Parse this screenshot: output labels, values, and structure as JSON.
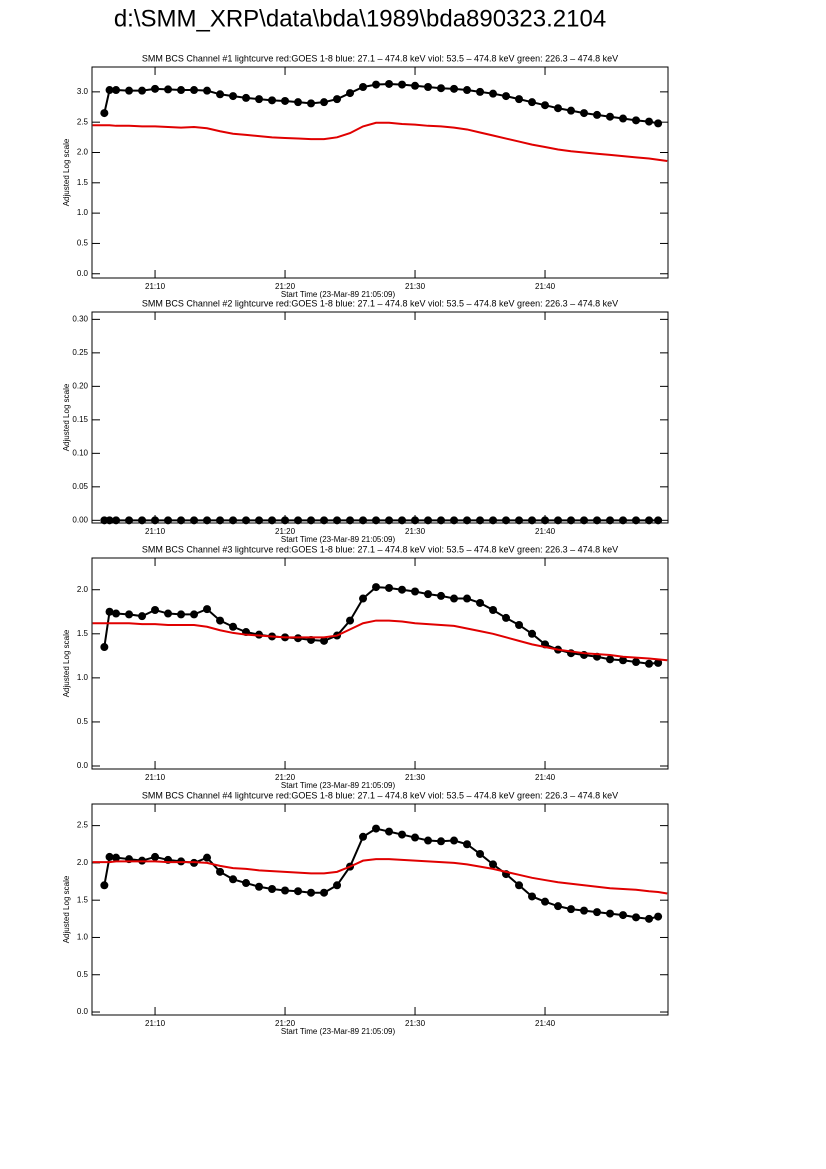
{
  "title": "d:\\SMM_XRP\\data\\bda\\1989\\bda890323.2104",
  "chart_data": [
    {
      "type": "line",
      "title": "SMM BCS Channel #1 lightcurve  red:GOES 1-8  blue: 27.1 – 474.8 keV  viol: 53.5 – 474.8 keV  green: 226.3 – 474.8 keV",
      "xlabel": "Start Time (23-Mar-89 21:05:09)",
      "ylabel": "Adjusted Log scale",
      "x": [
        5.2,
        6.1,
        6.5,
        7,
        8,
        9,
        10,
        11,
        12,
        13,
        14,
        15,
        16,
        17,
        18,
        19,
        20,
        21,
        22,
        23,
        24,
        25,
        26,
        27,
        28,
        29,
        30,
        31,
        32,
        33,
        34,
        35,
        36,
        37,
        38,
        39,
        40,
        41,
        42,
        43,
        44,
        45,
        46,
        47,
        48,
        48.7,
        49.4
      ],
      "series": [
        {
          "color": "#000000",
          "marker": "circle",
          "values": [
            null,
            2.65,
            3.03,
            3.03,
            3.02,
            3.02,
            3.05,
            3.04,
            3.03,
            3.03,
            3.02,
            2.96,
            2.93,
            2.9,
            2.88,
            2.86,
            2.85,
            2.83,
            2.81,
            2.83,
            2.88,
            2.98,
            3.08,
            3.12,
            3.13,
            3.12,
            3.1,
            3.08,
            3.06,
            3.05,
            3.03,
            3.0,
            2.97,
            2.93,
            2.88,
            2.83,
            2.78,
            2.73,
            2.69,
            2.65,
            2.62,
            2.59,
            2.56,
            2.53,
            2.51,
            2.48,
            null
          ]
        },
        {
          "color": "#e00000",
          "values": [
            2.45,
            2.45,
            2.45,
            2.44,
            2.44,
            2.43,
            2.43,
            2.42,
            2.41,
            2.42,
            2.4,
            2.35,
            2.31,
            2.29,
            2.27,
            2.25,
            2.24,
            2.23,
            2.22,
            2.22,
            2.25,
            2.32,
            2.43,
            2.49,
            2.49,
            2.47,
            2.46,
            2.44,
            2.43,
            2.41,
            2.38,
            2.33,
            2.28,
            2.23,
            2.18,
            2.13,
            2.09,
            2.05,
            2.02,
            2.0,
            1.98,
            1.96,
            1.94,
            1.92,
            1.9,
            1.88,
            1.86
          ]
        }
      ],
      "xlim": [
        5.15,
        49.46
      ],
      "xticks": [
        {
          "value": 10,
          "label": "21:10"
        },
        {
          "value": 20,
          "label": "21:20"
        },
        {
          "value": 30,
          "label": "21:30"
        },
        {
          "value": 40,
          "label": "21:40"
        }
      ],
      "ylim": [
        -0.07,
        3.41
      ],
      "yticks": [
        {
          "value": 0,
          "label": "0.0"
        },
        0.5,
        {
          "value": 1,
          "label": "1.0"
        },
        1.5,
        {
          "value": 2,
          "label": "2.0"
        },
        2.5,
        {
          "value": 3,
          "label": "3.0"
        }
      ]
    },
    {
      "type": "line",
      "title": "SMM BCS Channel #2 lightcurve  red:GOES 1-8  blue: 27.1 – 474.8 keV  viol: 53.5 – 474.8 keV  green: 226.3 – 474.8 keV",
      "xlabel": "Start Time (23-Mar-89 21:05:09)",
      "ylabel": "Adjusted Log scale",
      "x": [
        5.2,
        6.1,
        6.5,
        7,
        8,
        9,
        10,
        11,
        12,
        13,
        14,
        15,
        16,
        17,
        18,
        19,
        20,
        21,
        22,
        23,
        24,
        25,
        26,
        27,
        28,
        29,
        30,
        31,
        32,
        33,
        34,
        35,
        36,
        37,
        38,
        39,
        40,
        41,
        42,
        43,
        44,
        45,
        46,
        47,
        48,
        48.7,
        49.4
      ],
      "series": [
        {
          "color": "#000000",
          "marker": "circle",
          "values": [
            null,
            0,
            0,
            0,
            0,
            0,
            0,
            0,
            0,
            0,
            0,
            0,
            0,
            0,
            0,
            0,
            0,
            0,
            0,
            0,
            0,
            0,
            0,
            0,
            0,
            0,
            0,
            0,
            0,
            0,
            0,
            0,
            0,
            0,
            0,
            0,
            0,
            0,
            0,
            0,
            0,
            0,
            0,
            0,
            0,
            0,
            null
          ]
        }
      ],
      "xlim": [
        5.15,
        49.46
      ],
      "xticks": [
        {
          "value": 10,
          "label": "21:10"
        },
        {
          "value": 20,
          "label": "21:20"
        },
        {
          "value": 30,
          "label": "21:30"
        },
        {
          "value": 40,
          "label": "21:40"
        }
      ],
      "ylim": [
        -0.004,
        0.311
      ],
      "yticks": [
        {
          "value": 0,
          "label": "0.00"
        },
        0.05,
        {
          "value": 0.1,
          "label": "0.10"
        },
        0.15,
        {
          "value": 0.2,
          "label": "0.20"
        },
        0.25,
        {
          "value": 0.3,
          "label": "0.30"
        }
      ]
    },
    {
      "type": "line",
      "title": "SMM BCS Channel #3 lightcurve  red:GOES 1-8  blue: 27.1 – 474.8 keV  viol: 53.5 – 474.8 keV  green: 226.3 – 474.8 keV",
      "xlabel": "Start Time (23-Mar-89 21:05:09)",
      "ylabel": "Adjusted Log scale",
      "x": [
        5.2,
        6.1,
        6.5,
        7,
        8,
        9,
        10,
        11,
        12,
        13,
        14,
        15,
        16,
        17,
        18,
        19,
        20,
        21,
        22,
        23,
        24,
        25,
        26,
        27,
        28,
        29,
        30,
        31,
        32,
        33,
        34,
        35,
        36,
        37,
        38,
        39,
        40,
        41,
        42,
        43,
        44,
        45,
        46,
        47,
        48,
        48.7,
        49.4
      ],
      "series": [
        {
          "color": "#000000",
          "marker": "circle",
          "values": [
            null,
            1.35,
            1.75,
            1.73,
            1.72,
            1.7,
            1.77,
            1.73,
            1.72,
            1.72,
            1.78,
            1.65,
            1.58,
            1.52,
            1.49,
            1.47,
            1.46,
            1.45,
            1.43,
            1.42,
            1.48,
            1.65,
            1.9,
            2.03,
            2.02,
            2.0,
            1.98,
            1.95,
            1.93,
            1.9,
            1.9,
            1.85,
            1.77,
            1.68,
            1.6,
            1.5,
            1.38,
            1.32,
            1.28,
            1.26,
            1.24,
            1.21,
            1.2,
            1.18,
            1.16,
            1.17,
            null
          ]
        },
        {
          "color": "#e00000",
          "values": [
            1.62,
            1.62,
            1.62,
            1.62,
            1.62,
            1.61,
            1.61,
            1.6,
            1.6,
            1.6,
            1.58,
            1.54,
            1.51,
            1.49,
            1.48,
            1.47,
            1.46,
            1.46,
            1.46,
            1.46,
            1.48,
            1.55,
            1.62,
            1.65,
            1.65,
            1.64,
            1.62,
            1.61,
            1.6,
            1.59,
            1.56,
            1.53,
            1.5,
            1.46,
            1.42,
            1.38,
            1.35,
            1.32,
            1.3,
            1.28,
            1.27,
            1.26,
            1.24,
            1.23,
            1.22,
            1.21,
            1.2
          ]
        }
      ],
      "xlim": [
        5.15,
        49.46
      ],
      "xticks": [
        {
          "value": 10,
          "label": "21:10"
        },
        {
          "value": 20,
          "label": "21:20"
        },
        {
          "value": 30,
          "label": "21:30"
        },
        {
          "value": 40,
          "label": "21:40"
        }
      ],
      "ylim": [
        -0.034,
        2.36
      ],
      "yticks": [
        {
          "value": 0,
          "label": "0.0"
        },
        0.5,
        {
          "value": 1,
          "label": "1.0"
        },
        1.5,
        {
          "value": 2,
          "label": "2.0"
        }
      ]
    },
    {
      "type": "line",
      "title": "SMM BCS Channel #4 lightcurve  red:GOES 1-8  blue: 27.1 – 474.8 keV  viol: 53.5 – 474.8 keV  green: 226.3 – 474.8 keV",
      "xlabel": "Start Time (23-Mar-89 21:05:09)",
      "ylabel": "Adjusted Log scale",
      "x": [
        5.2,
        6.1,
        6.5,
        7,
        8,
        9,
        10,
        11,
        12,
        13,
        14,
        15,
        16,
        17,
        18,
        19,
        20,
        21,
        22,
        23,
        24,
        25,
        26,
        27,
        28,
        29,
        30,
        31,
        32,
        33,
        34,
        35,
        36,
        37,
        38,
        39,
        40,
        41,
        42,
        43,
        44,
        45,
        46,
        47,
        48,
        48.7,
        49.4
      ],
      "series": [
        {
          "color": "#000000",
          "marker": "circle",
          "values": [
            null,
            1.7,
            2.08,
            2.07,
            2.05,
            2.03,
            2.08,
            2.04,
            2.02,
            2.0,
            2.07,
            1.88,
            1.78,
            1.73,
            1.68,
            1.65,
            1.63,
            1.62,
            1.6,
            1.6,
            1.7,
            1.95,
            2.35,
            2.46,
            2.42,
            2.38,
            2.34,
            2.3,
            2.29,
            2.3,
            2.25,
            2.12,
            1.98,
            1.85,
            1.7,
            1.55,
            1.48,
            1.42,
            1.38,
            1.36,
            1.34,
            1.32,
            1.3,
            1.27,
            1.25,
            1.28,
            null
          ]
        },
        {
          "color": "#e00000",
          "values": [
            2.01,
            2.01,
            2.01,
            2.02,
            2.02,
            2.02,
            2.02,
            2.01,
            2.01,
            2.01,
            2.0,
            1.96,
            1.93,
            1.92,
            1.9,
            1.89,
            1.88,
            1.87,
            1.86,
            1.86,
            1.88,
            1.95,
            2.03,
            2.05,
            2.05,
            2.04,
            2.03,
            2.02,
            2.01,
            2.0,
            1.98,
            1.95,
            1.92,
            1.88,
            1.84,
            1.8,
            1.77,
            1.74,
            1.72,
            1.7,
            1.68,
            1.66,
            1.65,
            1.64,
            1.62,
            1.61,
            1.59
          ]
        }
      ],
      "xlim": [
        5.15,
        49.46
      ],
      "xticks": [
        {
          "value": 10,
          "label": "21:10"
        },
        {
          "value": 20,
          "label": "21:20"
        },
        {
          "value": 30,
          "label": "21:30"
        },
        {
          "value": 40,
          "label": "21:40"
        }
      ],
      "ylim": [
        -0.04,
        2.79
      ],
      "yticks": [
        {
          "value": 0,
          "label": "0.0"
        },
        0.5,
        {
          "value": 1,
          "label": "1.0"
        },
        1.5,
        {
          "value": 2,
          "label": "2.0"
        },
        2.5
      ]
    }
  ]
}
